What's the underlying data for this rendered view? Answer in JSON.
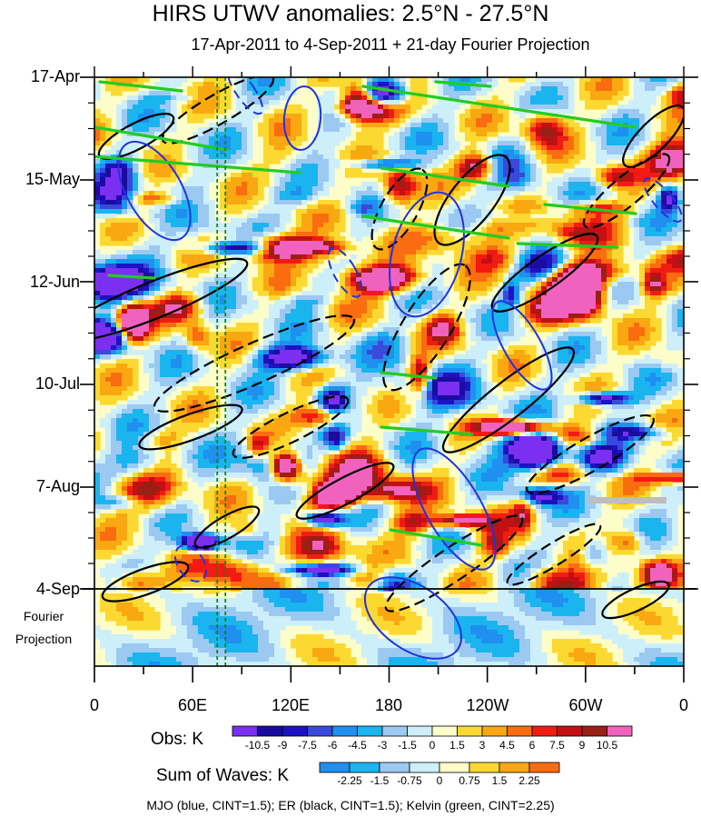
{
  "chart_data": {
    "type": "heatmap",
    "title": "HIRS UTWV anomalies: 2.5°N - 27.5°N",
    "subtitle": "17-Apr-2011 to 4-Sep-2011 + 21-day Fourier Projection",
    "y_labels": [
      "17-Apr",
      "15-May",
      "12-Jun",
      "10-Jul",
      "7-Aug",
      "4-Sep"
    ],
    "y_extra_label": [
      "Fourier",
      "Projection"
    ],
    "x_labels": [
      "0",
      "60E",
      "120E",
      "180",
      "120W",
      "60W",
      "0"
    ],
    "x_range_deg_east": [
      0,
      360
    ],
    "obs_colorbar": {
      "title": "Obs: K",
      "ticks": [
        "-10.5",
        "-9",
        "-7.5",
        "-6",
        "-4.5",
        "-3",
        "-1.5",
        "0",
        "1.5",
        "3",
        "4.5",
        "6",
        "7.5",
        "9",
        "10.5"
      ],
      "colors": [
        "#7b2ff0",
        "#1a0c9e",
        "#1d13c4",
        "#3949dc",
        "#1f8ff0",
        "#1ab5ef",
        "#9cc9f2",
        "#cdeffa",
        "#fdfdc9",
        "#fbd931",
        "#f9a811",
        "#fa6c10",
        "#f21b13",
        "#c21014",
        "#9a1f14",
        "#f062bd"
      ]
    },
    "waves_colorbar": {
      "title": "Sum of Waves: K",
      "ticks": [
        "-2.25",
        "-1.5",
        "-0.75",
        "0",
        "0.75",
        "1.5",
        "2.25"
      ],
      "colors": [
        "#1f8ff0",
        "#1ab5ef",
        "#9cc9f2",
        "#cdeffa",
        "#fdfdc9",
        "#fbd931",
        "#f9a811",
        "#fa6c10"
      ]
    },
    "contour_series": [
      {
        "name": "MJO",
        "color": "blue",
        "cint": 1.5
      },
      {
        "name": "ER",
        "color": "black",
        "cint": 1.5
      },
      {
        "name": "Kelvin",
        "color": "green",
        "cint": 2.25
      }
    ],
    "reference_lines_deg_east": [
      75,
      80
    ]
  },
  "footnote": "MJO (blue, CINT=1.5); ER (black, CINT=1.5); Kelvin (green, CINT=2.25)",
  "colors": {
    "mjo": "#2233dd",
    "er": "#000000",
    "kelvin": "#22cc22",
    "refline": "#118811"
  }
}
